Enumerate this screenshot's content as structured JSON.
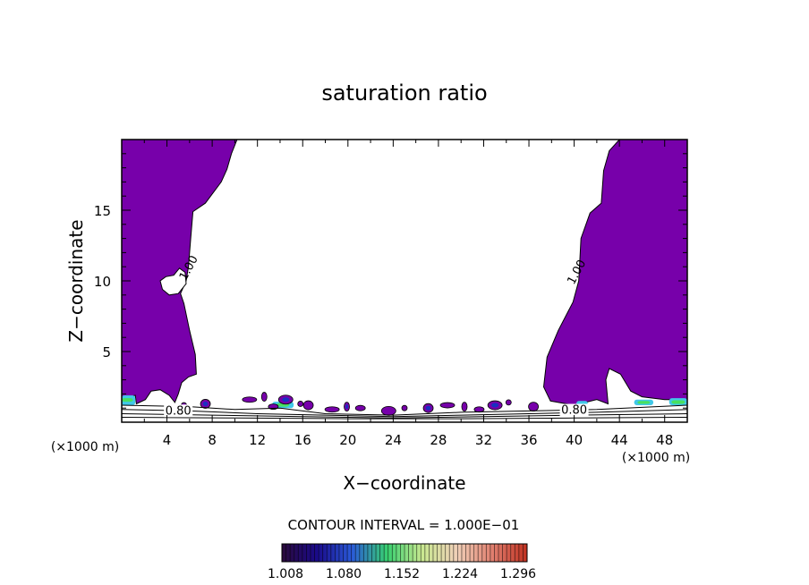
{
  "chart_data": {
    "type": "heatmap",
    "title": "saturation ratio",
    "xlabel": "X−coordinate",
    "ylabel": "Z−coordinate",
    "x_unit": "(×1000 m)",
    "xlim": [
      0,
      50
    ],
    "ylim": [
      0,
      20
    ],
    "x_ticks": [
      4,
      8,
      12,
      16,
      20,
      24,
      28,
      32,
      36,
      40,
      44,
      48
    ],
    "y_ticks": [
      5,
      10,
      15
    ],
    "contour_interval_text": "CONTOUR INTERVAL = 1.000E−01",
    "colorbar": {
      "labels": [
        "1.008",
        "1.080",
        "1.152",
        "1.224",
        "1.296"
      ],
      "colors": [
        "#2a0a3a",
        "#1a0a8a",
        "#2a5ad8",
        "#38d070",
        "#c8e890",
        "#f0d0b8",
        "#e08070",
        "#c03020"
      ]
    },
    "contour_labels": [
      "1.00",
      "1.00",
      "0.80",
      "0.80"
    ],
    "colors": {
      "supersaturated_fill": "#7700aa",
      "low_cyan": "#40c8e8",
      "low_green": "#48e060",
      "low_blue": "#1830c0"
    },
    "regions": {
      "left_column": [
        [
          0.0,
          20.0
        ],
        [
          10.2,
          20.0
        ],
        [
          9.7,
          19.0
        ],
        [
          9.3,
          17.9
        ],
        [
          8.8,
          17.0
        ],
        [
          7.4,
          15.5
        ],
        [
          6.3,
          14.9
        ],
        [
          6.1,
          13.0
        ],
        [
          5.9,
          11.0
        ],
        [
          5.7,
          10.0
        ],
        [
          5.2,
          9.1
        ],
        [
          5.5,
          8.4
        ],
        [
          6.0,
          6.5
        ],
        [
          6.5,
          4.8
        ],
        [
          6.6,
          3.4
        ],
        [
          5.9,
          3.2
        ],
        [
          5.3,
          2.8
        ],
        [
          5.0,
          2.0
        ],
        [
          4.7,
          1.4
        ],
        [
          4.2,
          1.9
        ],
        [
          3.4,
          2.3
        ],
        [
          2.6,
          2.2
        ],
        [
          2.1,
          1.6
        ],
        [
          1.3,
          1.3
        ],
        [
          1.2,
          1.9
        ],
        [
          0.0,
          1.7
        ]
      ],
      "right_column": [
        [
          50.0,
          20.0
        ],
        [
          44.0,
          20.0
        ],
        [
          43.1,
          19.2
        ],
        [
          42.6,
          17.8
        ],
        [
          42.4,
          15.5
        ],
        [
          41.4,
          14.8
        ],
        [
          40.6,
          13.0
        ],
        [
          40.4,
          10.0
        ],
        [
          39.9,
          8.5
        ],
        [
          38.6,
          6.5
        ],
        [
          37.6,
          4.6
        ],
        [
          37.3,
          2.5
        ],
        [
          37.9,
          1.5
        ],
        [
          40.0,
          1.2
        ],
        [
          42.0,
          1.6
        ],
        [
          43.0,
          1.3
        ],
        [
          42.8,
          3.0
        ],
        [
          43.1,
          3.8
        ],
        [
          44.1,
          3.4
        ],
        [
          45.0,
          2.2
        ],
        [
          46.0,
          1.8
        ],
        [
          48.0,
          1.6
        ],
        [
          50.0,
          1.6
        ]
      ],
      "left_hole": [
        [
          4.6,
          10.4
        ],
        [
          5.1,
          10.9
        ],
        [
          5.6,
          10.6
        ],
        [
          5.7,
          9.8
        ],
        [
          5.0,
          9.1
        ],
        [
          4.2,
          9.0
        ],
        [
          3.6,
          9.4
        ],
        [
          3.4,
          10.0
        ],
        [
          3.9,
          10.3
        ]
      ]
    },
    "low_level_blobs": [
      [
        5.5,
        1.2
      ],
      [
        7.4,
        1.3
      ],
      [
        11.3,
        1.6
      ],
      [
        12.6,
        1.8
      ],
      [
        13.4,
        1.1
      ],
      [
        14.5,
        1.6
      ],
      [
        15.8,
        1.3
      ],
      [
        16.5,
        1.2
      ],
      [
        18.6,
        0.9
      ],
      [
        19.9,
        1.1
      ],
      [
        21.1,
        1.0
      ],
      [
        23.6,
        0.8
      ],
      [
        25.0,
        1.0
      ],
      [
        27.1,
        1.0
      ],
      [
        28.8,
        1.2
      ],
      [
        30.3,
        1.1
      ],
      [
        31.6,
        0.9
      ],
      [
        33.0,
        1.2
      ],
      [
        34.2,
        1.4
      ],
      [
        36.4,
        1.1
      ]
    ],
    "near_surface_contours": [
      [
        [
          0,
          1.2
        ],
        [
          6,
          1.1
        ],
        [
          10,
          0.9
        ],
        [
          14,
          1.0
        ],
        [
          18,
          0.6
        ],
        [
          24,
          0.5
        ],
        [
          30,
          0.7
        ],
        [
          36,
          0.8
        ],
        [
          42,
          0.9
        ],
        [
          50,
          1.2
        ]
      ],
      [
        [
          0,
          0.9
        ],
        [
          6,
          0.8
        ],
        [
          12,
          0.6
        ],
        [
          18,
          0.5
        ],
        [
          24,
          0.4
        ],
        [
          30,
          0.5
        ],
        [
          36,
          0.6
        ],
        [
          42,
          0.7
        ],
        [
          50,
          0.9
        ]
      ],
      [
        [
          0,
          0.6
        ],
        [
          8,
          0.5
        ],
        [
          16,
          0.4
        ],
        [
          24,
          0.3
        ],
        [
          32,
          0.4
        ],
        [
          40,
          0.5
        ],
        [
          50,
          0.6
        ]
      ],
      [
        [
          0,
          0.35
        ],
        [
          10,
          0.3
        ],
        [
          20,
          0.25
        ],
        [
          30,
          0.25
        ],
        [
          40,
          0.3
        ],
        [
          50,
          0.35
        ]
      ]
    ]
  }
}
